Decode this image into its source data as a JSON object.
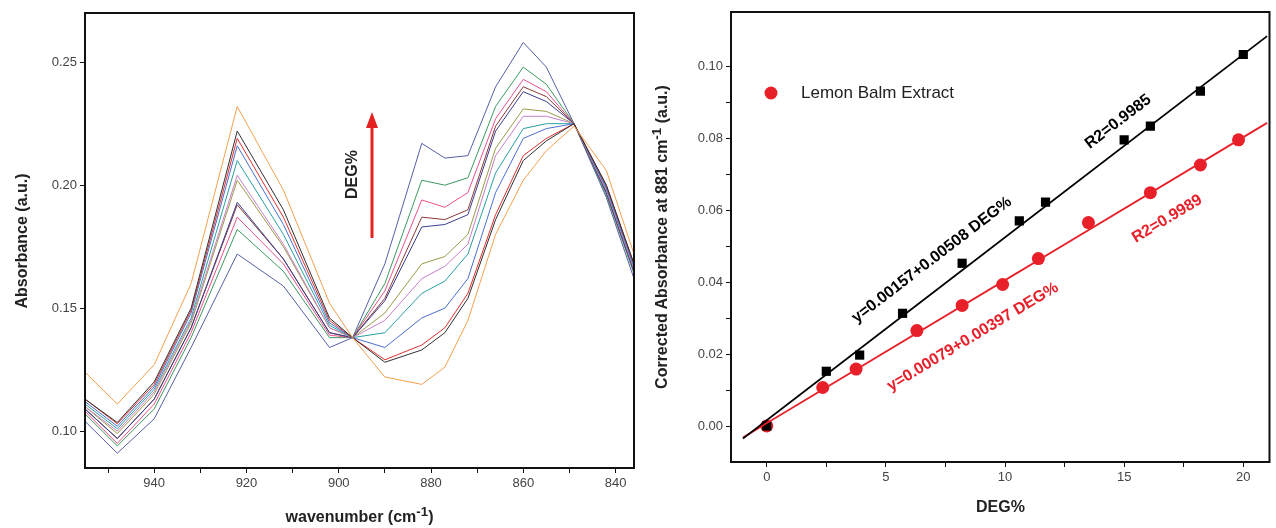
{
  "chart_data": [
    {
      "type": "line",
      "xlabel": "wavenumber (cm$^{-1}$)",
      "ylabel": "Absorbance (a.u.)",
      "x": [
        955,
        948,
        940,
        932,
        922,
        912,
        902,
        897,
        890,
        882,
        877,
        872,
        866,
        860,
        855,
        849,
        842,
        836
      ],
      "xlim": [
        955,
        836
      ],
      "ylim": [
        0.085,
        0.27
      ],
      "xticks": [
        {
          "value": 950,
          "label": null
        },
        940,
        {
          "value": 930,
          "label": null
        },
        920,
        {
          "value": 910,
          "label": null
        },
        900,
        {
          "value": 890,
          "label": null
        },
        880,
        {
          "value": 870,
          "label": null
        },
        860,
        {
          "value": 850,
          "label": null
        },
        840
      ],
      "yticks": [
        {
          "value": 0.1,
          "label": "0.10"
        },
        {
          "value": 0.15,
          "label": "0.15"
        },
        {
          "value": 0.2,
          "label": "0.20"
        },
        {
          "value": 0.25,
          "label": "0.25"
        }
      ],
      "annotations": [
        "DEG%"
      ],
      "series": [
        {
          "color": "#f5a050",
          "values": [
            0.124,
            0.111,
            0.127,
            0.16,
            0.232,
            0.198,
            0.152,
            0.138,
            0.122,
            0.119,
            0.126,
            0.145,
            0.18,
            0.202,
            0.214,
            0.224,
            0.206,
            0.172
          ]
        },
        {
          "color": "#303030",
          "values": [
            0.113,
            0.1035,
            0.12,
            0.15,
            0.222,
            0.19,
            0.146,
            0.138,
            0.128,
            0.133,
            0.14,
            0.154,
            0.186,
            0.21,
            0.218,
            0.225,
            0.2,
            0.168
          ]
        },
        {
          "color": "#e03030",
          "values": [
            0.113,
            0.103,
            0.119,
            0.149,
            0.219,
            0.187,
            0.145,
            0.138,
            0.129,
            0.135,
            0.142,
            0.156,
            0.188,
            0.212,
            0.219,
            0.225,
            0.2,
            0.168
          ]
        },
        {
          "color": "#4a6fd0",
          "values": [
            0.112,
            0.102,
            0.118,
            0.148,
            0.216,
            0.184,
            0.144,
            0.138,
            0.134,
            0.146,
            0.15,
            0.162,
            0.197,
            0.219,
            0.223,
            0.225,
            0.199,
            0.167
          ]
        },
        {
          "color": "#2aa0a0",
          "values": [
            0.111,
            0.101,
            0.117,
            0.146,
            0.21,
            0.18,
            0.143,
            0.138,
            0.14,
            0.156,
            0.161,
            0.172,
            0.205,
            0.223,
            0.225,
            0.225,
            0.199,
            0.167
          ]
        },
        {
          "color": "#c77fc7",
          "values": [
            0.11,
            0.1,
            0.116,
            0.145,
            0.204,
            0.176,
            0.142,
            0.138,
            0.145,
            0.162,
            0.167,
            0.176,
            0.212,
            0.228,
            0.228,
            0.225,
            0.198,
            0.166
          ]
        },
        {
          "color": "#9a9a4a",
          "values": [
            0.11,
            0.099,
            0.115,
            0.144,
            0.202,
            0.175,
            0.142,
            0.138,
            0.148,
            0.168,
            0.171,
            0.18,
            0.215,
            0.231,
            0.23,
            0.225,
            0.198,
            0.166
          ]
        },
        {
          "color": "#3b3f8f",
          "values": [
            0.109,
            0.097,
            0.113,
            0.142,
            0.193,
            0.17,
            0.14,
            0.138,
            0.153,
            0.183,
            0.184,
            0.188,
            0.222,
            0.238,
            0.234,
            0.225,
            0.197,
            0.165
          ]
        },
        {
          "color": "#8b3a3a",
          "values": [
            0.109,
            0.097,
            0.113,
            0.142,
            0.192,
            0.17,
            0.14,
            0.138,
            0.154,
            0.187,
            0.186,
            0.19,
            0.224,
            0.24,
            0.236,
            0.225,
            0.197,
            0.165
          ]
        },
        {
          "color": "#e8528c",
          "values": [
            0.108,
            0.095,
            0.111,
            0.14,
            0.187,
            0.168,
            0.139,
            0.138,
            0.157,
            0.194,
            0.191,
            0.197,
            0.227,
            0.243,
            0.238,
            0.225,
            0.197,
            0.165
          ]
        },
        {
          "color": "#3d9a5f",
          "values": [
            0.107,
            0.094,
            0.109,
            0.138,
            0.182,
            0.165,
            0.138,
            0.138,
            0.16,
            0.202,
            0.2,
            0.203,
            0.232,
            0.248,
            0.241,
            0.225,
            0.196,
            0.164
          ]
        },
        {
          "color": "#5560a8",
          "values": [
            0.104,
            0.091,
            0.105,
            0.134,
            0.172,
            0.159,
            0.134,
            0.138,
            0.168,
            0.217,
            0.211,
            0.212,
            0.24,
            0.258,
            0.248,
            0.225,
            0.195,
            0.162
          ]
        }
      ]
    },
    {
      "type": "scatter",
      "xlabel": "DEG%",
      "ylabel": "Corrected Absorbance at 881 cm$^{-1}$ (a.u.)",
      "xlim": [
        -1.5,
        21.1
      ],
      "ylim": [
        -0.01,
        0.115
      ],
      "xticks": [
        0,
        {
          "value": 2.5,
          "label": null
        },
        5,
        {
          "value": 7.5,
          "label": null
        },
        10,
        {
          "value": 12.5,
          "label": null
        },
        15,
        {
          "value": 17.5,
          "label": null
        },
        20
      ],
      "yticks": [
        {
          "value": 0,
          "label": "0.00"
        },
        {
          "value": 0.01,
          "label": null
        },
        {
          "value": 0.02,
          "label": "0.02"
        },
        {
          "value": 0.03,
          "label": null
        },
        {
          "value": 0.04,
          "label": "0.04"
        },
        {
          "value": 0.05,
          "label": null
        },
        {
          "value": 0.06,
          "label": "0.06"
        },
        {
          "value": 0.07,
          "label": null
        },
        {
          "value": 0.08,
          "label": "0.08"
        },
        {
          "value": 0.09,
          "label": null
        },
        {
          "value": 0.1,
          "label": "0.10"
        }
      ],
      "legend": "top left",
      "annotations": [
        "y=0.00157+0.00508 DEG%",
        "R2=0.9985",
        "y=0.00079+0.00397 DEG%",
        "R2=0.9989"
      ],
      "series": [
        {
          "type": "line",
          "marker": "none",
          "color": "#000000",
          "x": [
            -1,
            21
          ],
          "values": [
            -0.0035,
            0.1083
          ]
        },
        {
          "type": "line",
          "marker": "none",
          "color": "#e8202a",
          "x": [
            -1,
            21
          ],
          "values": [
            -0.0032,
            0.0842
          ]
        },
        {
          "marker": "square",
          "color": "#000000",
          "x": [
            0,
            2.5,
            3.9,
            5.7,
            8.2,
            10.6,
            11.7,
            15.0,
            16.1,
            18.2,
            20.0
          ],
          "values": [
            0,
            0.0152,
            0.0197,
            0.0313,
            0.0452,
            0.057,
            0.0622,
            0.0795,
            0.0833,
            0.093,
            0.1032
          ]
        },
        {
          "marker": "circle",
          "name": "Lemon Balm Extract",
          "color": "#e8202a",
          "x": [
            0,
            2.35,
            3.75,
            6.3,
            8.2,
            9.9,
            11.4,
            13.5,
            16.1,
            18.2,
            19.8
          ],
          "values": [
            0,
            0.0107,
            0.0158,
            0.0265,
            0.0335,
            0.0393,
            0.0465,
            0.0565,
            0.0648,
            0.0725,
            0.0795
          ]
        }
      ]
    }
  ]
}
